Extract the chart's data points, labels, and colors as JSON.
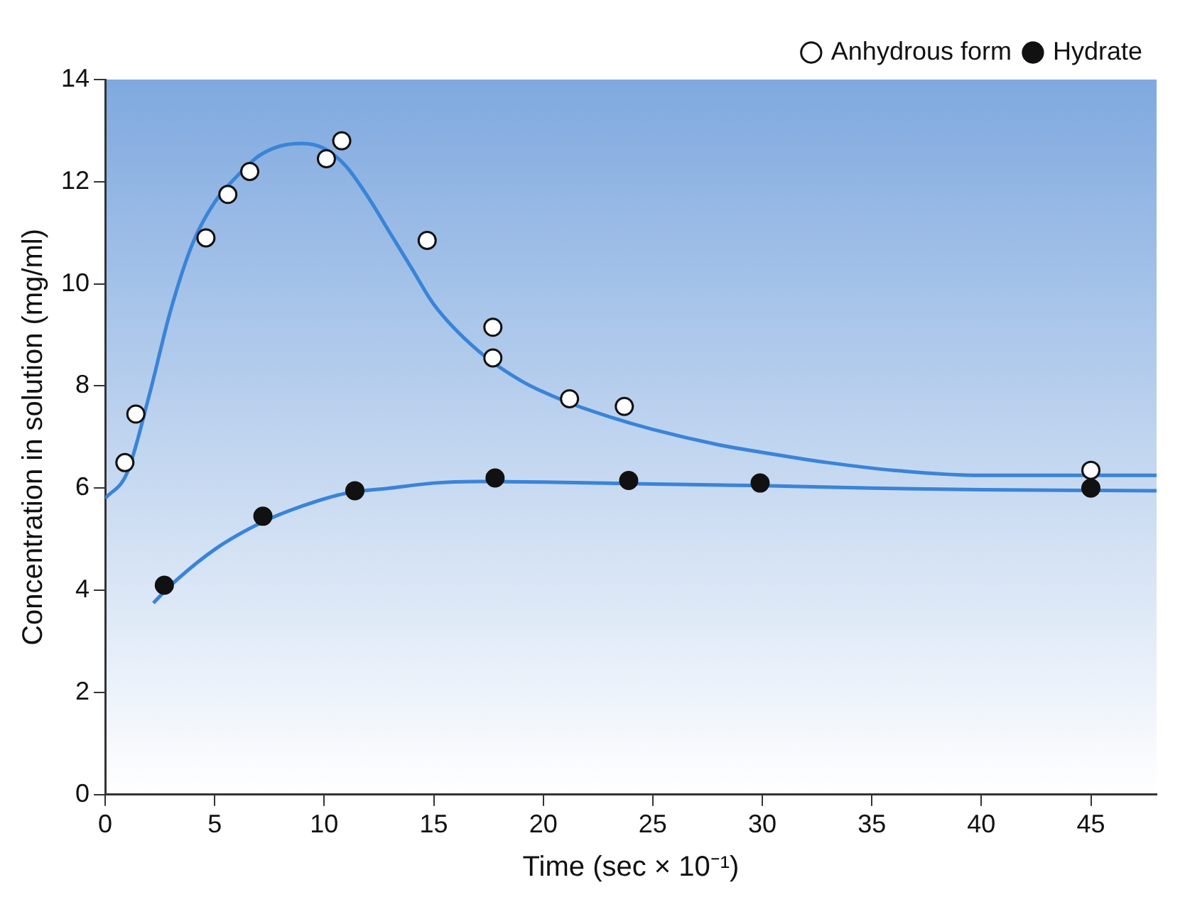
{
  "chart_data": {
    "type": "scatter",
    "xlabel": "Time (sec × 10⁻¹)",
    "ylabel": "Concentration in solution (mg/ml)",
    "xlim": [
      0,
      48
    ],
    "xticks": [
      0,
      5,
      10,
      15,
      20,
      25,
      30,
      35,
      40,
      45
    ],
    "ylim": [
      0,
      14
    ],
    "yticks": [
      0,
      2,
      4,
      6,
      8,
      10,
      12,
      14
    ],
    "grid": false,
    "legend": "top right",
    "series": [
      {
        "name": "Anhydrous form",
        "marker": "circle",
        "color": "#ffffff",
        "x": [
          0.9,
          1.4,
          4.6,
          5.6,
          6.6,
          10.1,
          10.8,
          14.7,
          17.7,
          17.7,
          21.2,
          23.7,
          45
        ],
        "values": [
          6.5,
          7.45,
          10.9,
          11.75,
          12.2,
          12.45,
          12.8,
          10.85,
          9.15,
          8.55,
          7.75,
          7.6,
          6.35
        ]
      },
      {
        "name": "Hydrate",
        "marker": "circle",
        "color": "#111111",
        "x": [
          2.7,
          7.2,
          11.4,
          17.8,
          23.9,
          29.9,
          45
        ],
        "values": [
          4.1,
          5.45,
          5.95,
          6.2,
          6.15,
          6.1,
          6.0
        ]
      },
      {
        "type": "line",
        "marker": "none",
        "color": "#3a84d8",
        "x": [
          0,
          1,
          2,
          3,
          4,
          5,
          6,
          7,
          8,
          9,
          10,
          11,
          12,
          13,
          14,
          15,
          17,
          19,
          21,
          23,
          25,
          28,
          30,
          33,
          36,
          40,
          48
        ],
        "values": [
          5.8,
          6.3,
          7.8,
          9.5,
          10.8,
          11.6,
          12.1,
          12.5,
          12.7,
          12.75,
          12.65,
          12.3,
          11.7,
          11.0,
          10.3,
          9.6,
          8.7,
          8.1,
          7.7,
          7.4,
          7.15,
          6.85,
          6.7,
          6.5,
          6.35,
          6.25,
          6.25
        ]
      },
      {
        "type": "line",
        "marker": "none",
        "color": "#3a84d8",
        "x": [
          2.2,
          3,
          5,
          7,
          9,
          11,
          13,
          15,
          17,
          20,
          25,
          30,
          35,
          40,
          48
        ],
        "values": [
          3.75,
          4.1,
          4.8,
          5.3,
          5.65,
          5.9,
          6.0,
          6.1,
          6.13,
          6.12,
          6.08,
          6.05,
          6.0,
          5.97,
          5.95
        ]
      }
    ]
  }
}
